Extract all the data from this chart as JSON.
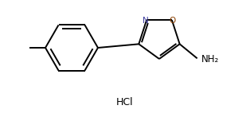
{
  "bg_color": "#ffffff",
  "line_color": "#000000",
  "N_color": "#4040a0",
  "O_color": "#8b4000",
  "label_NH2": "NH₂",
  "label_N": "N",
  "label_O": "O",
  "label_HCl": "HCl",
  "figsize": [
    3.14,
    1.52
  ],
  "dpi": 100
}
